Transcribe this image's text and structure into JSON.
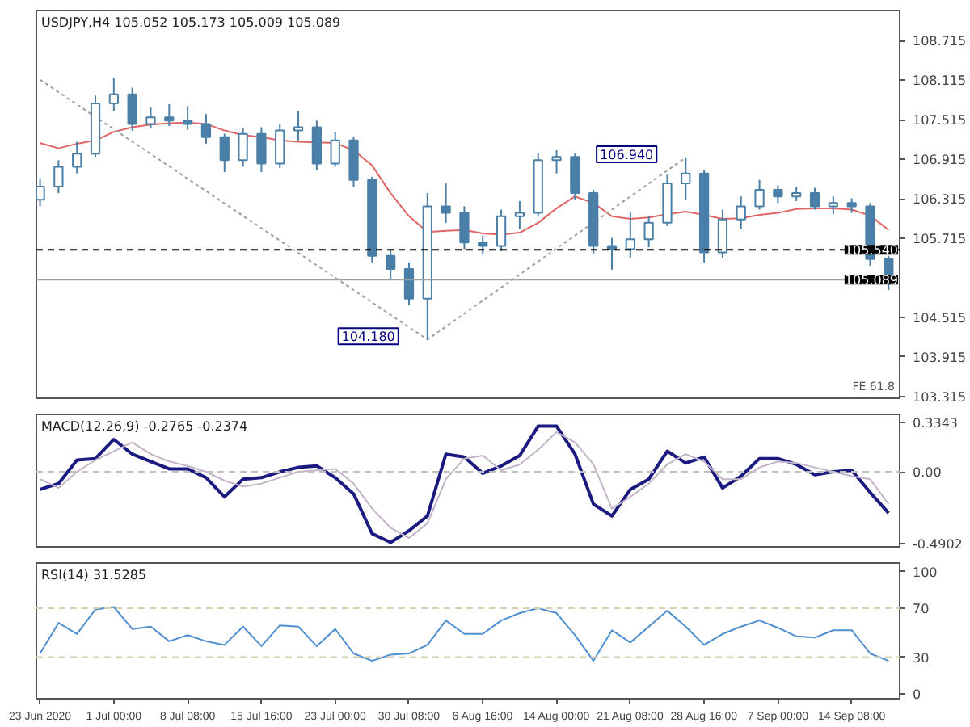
{
  "chart_data": [
    {
      "type": "candlestick",
      "title": "USDJPY,H4 105.052 105.173 105.009 105.089",
      "color": "#4a7fa8",
      "categories": [
        null,
        null,
        null,
        null,
        null,
        null,
        null,
        null,
        null,
        null,
        null,
        null,
        null,
        null,
        null,
        null,
        null,
        null,
        null,
        null,
        null,
        null,
        null,
        null,
        null,
        null,
        null,
        null,
        null,
        null,
        null,
        null,
        null,
        null,
        null,
        null,
        null,
        null,
        null,
        null,
        null,
        null,
        null,
        null,
        null,
        null,
        null
      ],
      "ohlc": [
        [
          106.3,
          106.62,
          106.2,
          106.5
        ],
        [
          106.5,
          106.9,
          106.4,
          106.8
        ],
        [
          106.8,
          107.18,
          106.7,
          107.0
        ],
        [
          107.0,
          107.88,
          106.95,
          107.76
        ],
        [
          107.76,
          108.15,
          107.65,
          107.9
        ],
        [
          107.9,
          108.0,
          107.35,
          107.45
        ],
        [
          107.45,
          107.7,
          107.38,
          107.55
        ],
        [
          107.55,
          107.75,
          107.42,
          107.5
        ],
        [
          107.5,
          107.72,
          107.36,
          107.45
        ],
        [
          107.45,
          107.6,
          107.15,
          107.25
        ],
        [
          107.25,
          107.3,
          106.72,
          106.9
        ],
        [
          106.9,
          107.38,
          106.8,
          107.3
        ],
        [
          107.3,
          107.4,
          106.72,
          106.85
        ],
        [
          106.85,
          107.45,
          106.78,
          107.35
        ],
        [
          107.35,
          107.65,
          107.2,
          107.4
        ],
        [
          107.4,
          107.5,
          106.75,
          106.85
        ],
        [
          106.85,
          107.32,
          106.8,
          107.2
        ],
        [
          107.2,
          107.25,
          106.5,
          106.6
        ],
        [
          106.6,
          106.65,
          105.35,
          105.45
        ],
        [
          105.45,
          105.55,
          105.1,
          105.25
        ],
        [
          105.25,
          105.35,
          104.7,
          104.8
        ],
        [
          104.8,
          106.4,
          104.18,
          106.2
        ],
        [
          106.2,
          106.55,
          105.95,
          106.1
        ],
        [
          106.1,
          106.2,
          105.55,
          105.65
        ],
        [
          105.65,
          105.75,
          105.48,
          105.6
        ],
        [
          105.6,
          106.15,
          105.52,
          106.05
        ],
        [
          106.05,
          106.28,
          105.85,
          106.1
        ],
        [
          106.1,
          107.0,
          106.05,
          106.9
        ],
        [
          106.9,
          107.05,
          106.7,
          106.95
        ],
        [
          106.95,
          107.0,
          106.3,
          106.4
        ],
        [
          106.4,
          106.45,
          105.48,
          105.6
        ],
        [
          105.6,
          105.72,
          105.24,
          105.55
        ],
        [
          105.55,
          106.12,
          105.42,
          105.7
        ],
        [
          105.7,
          106.05,
          105.58,
          105.95
        ],
        [
          105.95,
          106.68,
          105.9,
          106.55
        ],
        [
          106.55,
          106.94,
          106.3,
          106.7
        ],
        [
          106.7,
          106.75,
          105.35,
          105.5
        ],
        [
          105.5,
          106.15,
          105.42,
          106.0
        ],
        [
          106.0,
          106.35,
          105.85,
          106.2
        ],
        [
          106.2,
          106.6,
          106.15,
          106.45
        ],
        [
          106.45,
          106.52,
          106.25,
          106.35
        ],
        [
          106.35,
          106.5,
          106.28,
          106.4
        ],
        [
          106.4,
          106.48,
          106.15,
          106.2
        ],
        [
          106.2,
          106.35,
          106.08,
          106.25
        ],
        [
          106.25,
          106.32,
          106.1,
          106.2
        ],
        [
          106.2,
          106.25,
          105.3,
          105.4
        ],
        [
          105.4,
          105.45,
          104.93,
          105.09
        ]
      ],
      "series": [
        {
          "type": "line",
          "color": "#e06666",
          "line_style": "solid",
          "values": [
            107.16,
            107.08,
            107.15,
            107.2,
            107.33,
            107.4,
            107.44,
            107.46,
            107.47,
            107.45,
            107.35,
            107.28,
            107.25,
            107.2,
            107.18,
            107.17,
            107.16,
            107.05,
            106.82,
            106.4,
            106.05,
            105.81,
            105.83,
            105.84,
            105.79,
            105.77,
            105.8,
            105.95,
            106.17,
            106.35,
            106.25,
            106.05,
            106.01,
            106.03,
            106.08,
            106.12,
            106.07,
            106.01,
            106.02,
            106.07,
            106.1,
            106.16,
            106.17,
            106.17,
            106.15,
            106.06,
            105.84
          ]
        },
        {
          "type": "line",
          "color": "#a0a0a0",
          "line_style": "dotted",
          "values": [
            108.12,
            null,
            null,
            null,
            null,
            null,
            null,
            null,
            null,
            null,
            null,
            null,
            null,
            null,
            null,
            null,
            null,
            null,
            null,
            null,
            null,
            104.18,
            null,
            null,
            null,
            null,
            null,
            null,
            null,
            null,
            null,
            null,
            null,
            null,
            null,
            106.94,
            null,
            null,
            null,
            null,
            null,
            null,
            null,
            null,
            null,
            null,
            null
          ]
        }
      ],
      "ref_lines": [
        {
          "axis": "y",
          "value": 105.54,
          "label": "105.540",
          "color": "#000000",
          "line_style": "dashed"
        },
        {
          "axis": "y",
          "value": 105.089,
          "label": "105.089",
          "color": "#a0a0a0",
          "line_style": "solid"
        }
      ],
      "annotations": [
        "104.180",
        "106.940",
        "FE 61.8"
      ],
      "ylim": [
        103.29,
        109.17
      ],
      "yticks": [
        103.315,
        103.915,
        104.515,
        105.715,
        106.315,
        106.915,
        107.515,
        108.115,
        108.715
      ],
      "tick_labels": "y"
    },
    {
      "type": "line",
      "title": "MACD(12,26,9) -0.2765 -0.2374",
      "categories": [
        null,
        null,
        null,
        null,
        null,
        null,
        null,
        null,
        null,
        null,
        null,
        null,
        null,
        null,
        null,
        null,
        null,
        null,
        null,
        null,
        null,
        null,
        null,
        null,
        null,
        null,
        null,
        null,
        null,
        null,
        null,
        null,
        null,
        null,
        null,
        null,
        null,
        null,
        null,
        null,
        null,
        null,
        null,
        null,
        null,
        null,
        null
      ],
      "series": [
        {
          "color": "#1a1a80",
          "values": [
            -0.12,
            -0.08,
            0.08,
            0.09,
            0.22,
            0.12,
            0.07,
            0.02,
            0.02,
            -0.04,
            -0.17,
            -0.05,
            -0.04,
            0.0,
            0.03,
            0.04,
            -0.04,
            -0.15,
            -0.42,
            -0.48,
            -0.4,
            -0.3,
            0.12,
            0.1,
            -0.01,
            0.04,
            0.11,
            0.31,
            0.31,
            0.12,
            -0.22,
            -0.3,
            -0.12,
            -0.05,
            0.14,
            0.06,
            0.1,
            -0.11,
            -0.03,
            0.09,
            0.09,
            0.05,
            -0.02,
            0.0,
            0.01,
            -0.14,
            -0.28
          ]
        },
        {
          "color": "#c4b4c8",
          "values": [
            -0.05,
            -0.11,
            0.0,
            0.08,
            0.14,
            0.2,
            0.12,
            0.07,
            0.04,
            0.0,
            -0.06,
            -0.1,
            -0.08,
            -0.04,
            0.0,
            0.01,
            0.02,
            -0.08,
            -0.25,
            -0.38,
            -0.45,
            -0.35,
            -0.05,
            0.09,
            0.11,
            0.01,
            0.05,
            0.15,
            0.27,
            0.2,
            0.05,
            -0.25,
            -0.17,
            -0.08,
            0.05,
            0.12,
            0.07,
            -0.05,
            -0.05,
            0.03,
            0.07,
            0.06,
            0.03,
            0.0,
            -0.03,
            -0.05,
            -0.22
          ]
        }
      ],
      "ref_lines": [
        {
          "axis": "y",
          "value": 0,
          "color": "#c0c0c0",
          "line_style": "dashed"
        }
      ],
      "ylim": [
        -0.51,
        0.39
      ],
      "yticks": [
        -0.4902,
        {
          "value": 0,
          "label": "0.00"
        },
        0.3343
      ],
      "tick_labels": "y"
    },
    {
      "type": "line",
      "title": "RSI(14) 31.5285",
      "categories": [
        "23 Jun 2020",
        null,
        null,
        null,
        "1 Jul 00:00",
        null,
        null,
        null,
        "8 Jul 08:00",
        null,
        null,
        null,
        "15 Jul 16:00",
        null,
        null,
        null,
        "23 Jul 00:00",
        null,
        null,
        null,
        "30 Jul 08:00",
        null,
        null,
        null,
        "6 Aug 16:00",
        null,
        null,
        null,
        "14 Aug 00:00",
        null,
        null,
        null,
        "21 Aug 08:00",
        null,
        null,
        null,
        "28 Aug 16:00",
        null,
        null,
        null,
        "7 Sep 00:00",
        null,
        null,
        null,
        "14 Sep 08:00",
        null,
        null
      ],
      "series": [
        {
          "color": "#4f8fcf",
          "values": [
            33,
            58,
            49,
            69,
            71,
            53,
            55,
            43,
            48,
            43,
            40,
            55,
            39,
            56,
            55,
            39,
            53,
            33,
            27,
            32,
            33,
            40,
            60,
            49,
            49,
            60,
            66,
            70,
            66,
            48,
            27,
            52,
            42,
            55,
            68,
            55,
            40,
            49,
            55,
            60,
            54,
            47,
            46,
            52,
            52,
            33,
            27
          ]
        }
      ],
      "ref_lines": [
        {
          "axis": "y",
          "value": 70,
          "color": "#d8d0b0",
          "line_style": "dashed"
        },
        {
          "axis": "y",
          "value": 30,
          "color": "#d8d0b0",
          "line_style": "dashed"
        }
      ],
      "ylim": [
        -4,
        107
      ],
      "yticks": [
        0,
        30,
        70,
        100
      ]
    }
  ]
}
